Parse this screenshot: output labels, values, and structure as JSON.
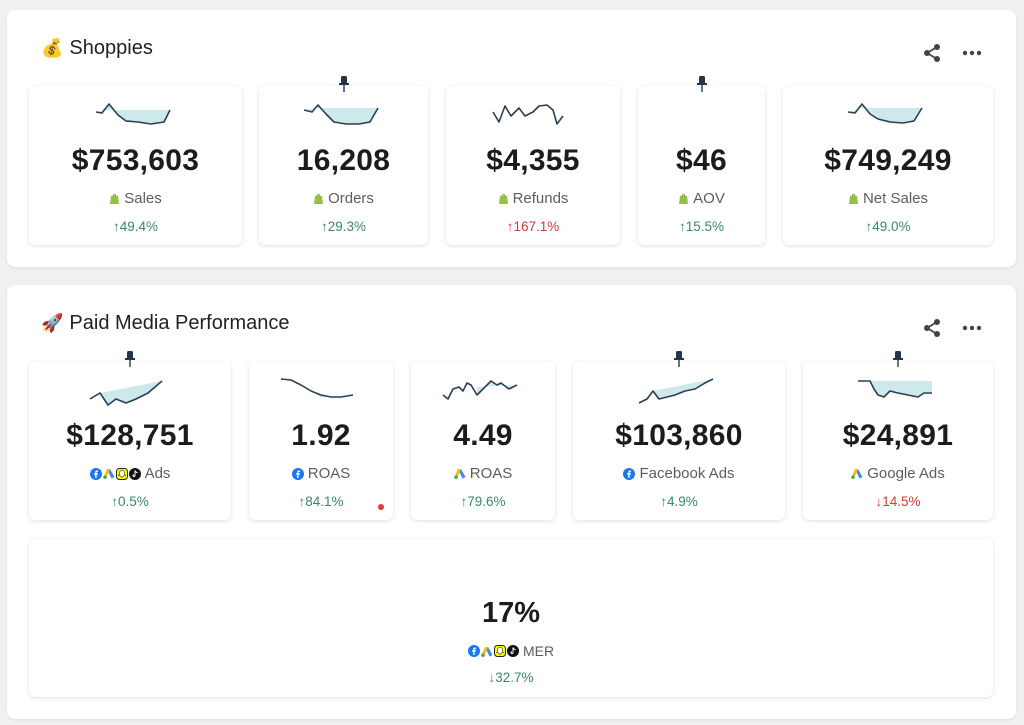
{
  "colors": {
    "positive": "#3a8a66",
    "negative": "#d23b36",
    "spark_fill": "#cde9ec",
    "spark_line": "#2a3f54"
  },
  "sections": [
    {
      "title": "Shoppies",
      "emoji": "💰",
      "cards": [
        {
          "value": "$753,603",
          "label": "Sales",
          "icon": "shopify-icon",
          "change": "↑49.4%",
          "direction": "up",
          "pinned": false
        },
        {
          "value": "16,208",
          "label": "Orders",
          "icon": "shopify-icon",
          "change": "↑29.3%",
          "direction": "up",
          "pinned": true
        },
        {
          "value": "$4,355",
          "label": "Refunds",
          "icon": "shopify-icon",
          "change": "↑167.1%",
          "direction": "down",
          "pinned": false
        },
        {
          "value": "$46",
          "label": "AOV",
          "icon": "shopify-icon",
          "change": "↑15.5%",
          "direction": "up",
          "pinned": true
        },
        {
          "value": "$749,249",
          "label": "Net Sales",
          "icon": "shopify-icon",
          "change": "↑49.0%",
          "direction": "up",
          "pinned": false
        }
      ]
    },
    {
      "title": "Paid Media Performance",
      "emoji": "🚀",
      "cards": [
        {
          "value": "$128,751",
          "label": "Ads",
          "icon": "multi-platform-icons",
          "change": "↑0.5%",
          "direction": "up",
          "pinned": true
        },
        {
          "value": "1.92",
          "label": "ROAS",
          "icon": "facebook-icon",
          "change": "↑84.1%",
          "direction": "up",
          "pinned": false,
          "alert": true
        },
        {
          "value": "4.49",
          "label": "ROAS",
          "icon": "google-ads-icon",
          "change": "↑79.6%",
          "direction": "up",
          "pinned": false
        },
        {
          "value": "$103,860",
          "label": "Facebook Ads",
          "icon": "facebook-icon",
          "change": "↑4.9%",
          "direction": "up",
          "pinned": true
        },
        {
          "value": "$24,891",
          "label": "Google Ads",
          "icon": "google-ads-icon",
          "change": "↓14.5%",
          "direction": "down",
          "pinned": true
        }
      ],
      "wide_card": {
        "value": "17%",
        "label": "MER",
        "icon": "multi-platform-icons",
        "change": "↓32.7%",
        "direction": "up"
      }
    }
  ]
}
